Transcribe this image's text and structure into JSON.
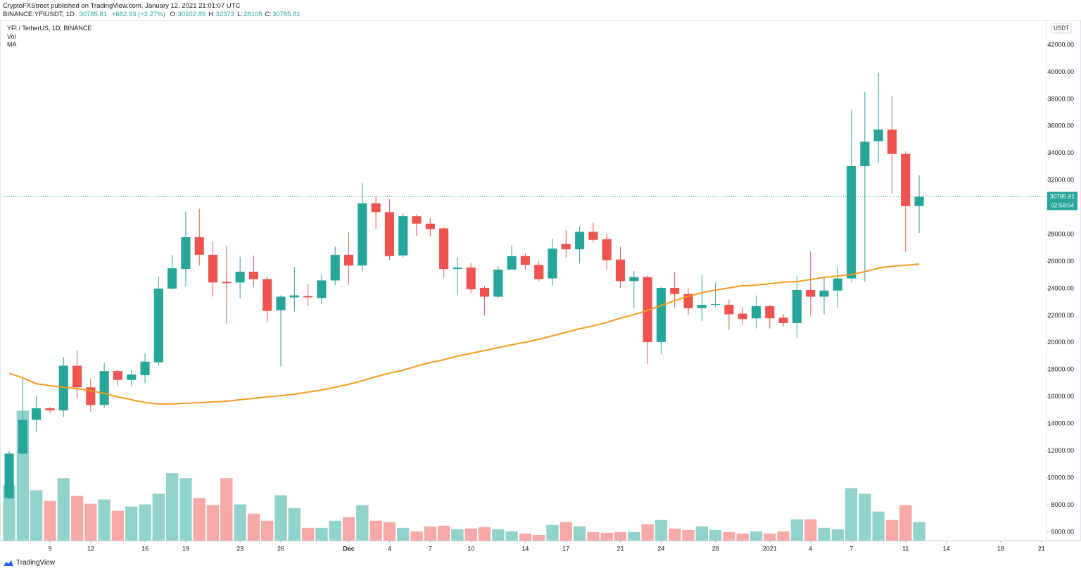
{
  "header": {
    "publisher": "CryptoFXStreet published on TradingView.com, January 12, 2021 21:01:07 UTC",
    "symbol": "BINANCE:YFIUSDT, 1D",
    "price": 30785.81,
    "change": {
      "value": 682.93,
      "label": "+682.93 (+2.27%)"
    },
    "ohlc": [
      {
        "label": "O:",
        "value": 30102.89
      },
      {
        "label": "H:",
        "value": 32373
      },
      {
        "label": "L:",
        "value": 28108
      },
      {
        "label": "C:",
        "value": 30785.81
      }
    ]
  },
  "chart_data": {
    "type": "candlestick",
    "title": "YFI / TetherUS, 1D, BINANCE",
    "x": [
      "2020-11-06",
      "2020-11-07",
      "2020-11-08",
      "2020-11-09",
      "2020-11-10",
      "2020-11-11",
      "2020-11-12",
      "2020-11-13",
      "2020-11-14",
      "2020-11-15",
      "2020-11-16",
      "2020-11-17",
      "2020-11-18",
      "2020-11-19",
      "2020-11-20",
      "2020-11-21",
      "2020-11-22",
      "2020-11-23",
      "2020-11-24",
      "2020-11-25",
      "2020-11-26",
      "2020-11-27",
      "2020-11-28",
      "2020-11-29",
      "2020-11-30",
      "2020-12-01",
      "2020-12-02",
      "2020-12-03",
      "2020-12-04",
      "2020-12-05",
      "2020-12-06",
      "2020-12-07",
      "2020-12-08",
      "2020-12-09",
      "2020-12-10",
      "2020-12-11",
      "2020-12-12",
      "2020-12-13",
      "2020-12-14",
      "2020-12-15",
      "2020-12-16",
      "2020-12-17",
      "2020-12-18",
      "2020-12-19",
      "2020-12-20",
      "2020-12-21",
      "2020-12-22",
      "2020-12-23",
      "2020-12-24",
      "2020-12-25",
      "2020-12-26",
      "2020-12-27",
      "2020-12-28",
      "2020-12-29",
      "2020-12-30",
      "2020-12-31",
      "2021-01-01",
      "2021-01-02",
      "2021-01-03",
      "2021-01-04",
      "2021-01-05",
      "2021-01-06",
      "2021-01-07",
      "2021-01-08",
      "2021-01-09",
      "2021-01-10",
      "2021-01-11",
      "2021-01-12"
    ],
    "open": [
      8500,
      11800,
      14300,
      15150,
      15000,
      18300,
      16700,
      15400,
      17900,
      17250,
      17600,
      18550,
      24000,
      25450,
      27800,
      26500,
      24500,
      24450,
      25250,
      24700,
      22400,
      23350,
      23450,
      23300,
      24600,
      26500,
      25700,
      30300,
      29650,
      26450,
      29350,
      28800,
      28450,
      25450,
      25550,
      24050,
      23400,
      25400,
      26400,
      25750,
      24750,
      27300,
      26900,
      28200,
      27650,
      26150,
      24550,
      24850,
      20050,
      24050,
      23600,
      22550,
      22800,
      22800,
      22150,
      21800,
      22700,
      21850,
      21450,
      23900,
      23400,
      23850,
      24750,
      33050,
      34900,
      35750,
      33950,
      30102.89
    ],
    "high": [
      12000,
      17400,
      16100,
      15250,
      18950,
      19400,
      17300,
      18500,
      18000,
      18000,
      19200,
      24900,
      26500,
      29700,
      29900,
      27500,
      27150,
      26350,
      26450,
      24900,
      23500,
      25600,
      24350,
      25050,
      27100,
      28150,
      31800,
      30800,
      30600,
      29550,
      29500,
      29200,
      28550,
      26300,
      25900,
      24200,
      25650,
      27200,
      26600,
      26050,
      27700,
      28300,
      28600,
      28900,
      28050,
      27100,
      25300,
      24950,
      24150,
      25200,
      24000,
      25000,
      24450,
      23200,
      22650,
      23500,
      22800,
      22100,
      24950,
      26750,
      24900,
      25550,
      37200,
      38550,
      39950,
      38200,
      34150,
      32373
    ],
    "low": [
      8450,
      11700,
      13400,
      14800,
      14500,
      15900,
      14900,
      15200,
      16800,
      16800,
      17000,
      18300,
      23900,
      24200,
      25700,
      23400,
      21400,
      23300,
      24100,
      21500,
      18250,
      22300,
      22750,
      22850,
      24250,
      24250,
      25250,
      28400,
      26100,
      26300,
      27900,
      27850,
      24800,
      23500,
      23650,
      22000,
      23300,
      25400,
      25400,
      24500,
      24200,
      26300,
      25850,
      27400,
      25400,
      24050,
      22600,
      18400,
      19150,
      22600,
      22050,
      21600,
      22600,
      20950,
      21300,
      21050,
      21050,
      21200,
      20350,
      22000,
      22100,
      22600,
      24500,
      24500,
      33350,
      31000,
      26700,
      28108
    ],
    "close": [
      11800,
      14300,
      15150,
      15000,
      18300,
      16700,
      15400,
      17900,
      17250,
      17650,
      18600,
      24000,
      25500,
      27800,
      26500,
      24450,
      24400,
      25250,
      24700,
      22350,
      23400,
      23500,
      23350,
      24600,
      26500,
      25700,
      30300,
      29650,
      26400,
      29350,
      28800,
      28400,
      25450,
      25550,
      23950,
      23400,
      25400,
      26400,
      25750,
      24700,
      26950,
      26900,
      28200,
      27600,
      26100,
      24550,
      24850,
      20050,
      24050,
      23600,
      22550,
      22800,
      22850,
      22100,
      21750,
      22700,
      21800,
      21450,
      23900,
      23400,
      23850,
      24750,
      33050,
      34850,
      35750,
      33950,
      30100,
      30785.81
    ],
    "up_color": "#26a69a",
    "down_color": "#ef5350",
    "indicators": [
      {
        "name": "Vol",
        "type": "bar",
        "values": [
          78,
          183,
          71,
          56,
          88,
          63,
          52,
          58,
          42,
          48,
          51,
          66,
          95,
          88,
          60,
          50,
          88,
          51,
          38,
          28,
          64,
          46,
          18,
          18,
          28,
          33,
          50,
          28,
          26,
          18,
          13,
          20,
          21,
          16,
          17,
          19,
          16,
          13,
          10,
          8,
          22,
          26,
          20,
          12,
          11,
          12,
          12,
          23,
          29,
          17,
          15,
          20,
          15,
          12,
          10,
          13,
          10,
          13,
          30,
          30,
          18,
          16,
          74,
          66,
          41,
          29,
          50,
          26
        ]
      },
      {
        "name": "MA",
        "type": "line",
        "color": "#f59b1e",
        "values": [
          17750,
          17400,
          16970,
          16820,
          16710,
          16610,
          16450,
          16250,
          15990,
          15780,
          15570,
          15470,
          15470,
          15520,
          15570,
          15620,
          15670,
          15780,
          15880,
          15990,
          16090,
          16190,
          16350,
          16500,
          16710,
          16920,
          17180,
          17490,
          17750,
          17960,
          18270,
          18530,
          18740,
          19000,
          19210,
          19420,
          19630,
          19840,
          20040,
          20250,
          20510,
          20770,
          21030,
          21240,
          21500,
          21810,
          22070,
          22390,
          22750,
          23110,
          23430,
          23690,
          23890,
          24050,
          24210,
          24260,
          24360,
          24470,
          24520,
          24670,
          24830,
          24930,
          25040,
          25250,
          25510,
          25660,
          25720,
          25820
        ]
      }
    ],
    "ylim": [
      5370,
      43770
    ],
    "y_unit": "USDT",
    "yticks": [
      {
        "value": 6000,
        "label": "6000.00"
      },
      {
        "value": 8000,
        "label": "8000.00"
      },
      {
        "value": 10000,
        "label": "10000.00"
      },
      {
        "value": 12000,
        "label": "12000.00"
      },
      {
        "value": 14000,
        "label": "14000.00"
      },
      {
        "value": 16000,
        "label": "16000.00"
      },
      {
        "value": 18000,
        "label": "18000.00"
      },
      {
        "value": 20000,
        "label": "20000.00"
      },
      {
        "value": 22000,
        "label": "22000.00"
      },
      {
        "value": 24000,
        "label": "24000.00"
      },
      {
        "value": 26000,
        "label": "26000.00"
      },
      {
        "value": 28000,
        "label": "28000.00"
      },
      {
        "value": 30000,
        "label": "30000.00"
      },
      {
        "value": 32000,
        "label": "32000.00"
      },
      {
        "value": 34000,
        "label": "34000.00"
      },
      {
        "value": 36000,
        "label": "36000.00"
      },
      {
        "value": 38000,
        "label": "38000.00"
      },
      {
        "value": 40000,
        "label": "40000.00"
      },
      {
        "value": 42000,
        "label": "42000.00"
      }
    ],
    "xlim": [
      "2020-11-05T12:45",
      "2021-01-21T09:00"
    ],
    "xticks": [
      {
        "value": "2020-11-09",
        "label": "9"
      },
      {
        "value": "2020-11-12",
        "label": "12"
      },
      {
        "value": "2020-11-16",
        "label": "16"
      },
      {
        "value": "2020-11-19",
        "label": "19"
      },
      {
        "value": "2020-11-23",
        "label": "23"
      },
      {
        "value": "2020-11-26",
        "label": "26"
      },
      {
        "value": "2020-12-01",
        "label": "Dec"
      },
      {
        "value": "2020-12-04",
        "label": "4"
      },
      {
        "value": "2020-12-07",
        "label": "7"
      },
      {
        "value": "2020-12-10",
        "label": "10"
      },
      {
        "value": "2020-12-14",
        "label": "14"
      },
      {
        "value": "2020-12-17",
        "label": "17"
      },
      {
        "value": "2020-12-21",
        "label": "21"
      },
      {
        "value": "2020-12-24",
        "label": "24"
      },
      {
        "value": "2020-12-28",
        "label": "28"
      },
      {
        "value": "2021-01-01",
        "label": "2021"
      },
      {
        "value": "2021-01-04",
        "label": "4"
      },
      {
        "value": "2021-01-07",
        "label": "7"
      },
      {
        "value": "2021-01-11",
        "label": "11"
      },
      {
        "value": "2021-01-14",
        "label": "14"
      },
      {
        "value": "2021-01-18",
        "label": "18"
      },
      {
        "value": "2021-01-21",
        "label": "21"
      }
    ],
    "last_price": 30785.81,
    "countdown": "02:58:54",
    "grid": false
  },
  "footer": {
    "brand": "TradingView"
  }
}
